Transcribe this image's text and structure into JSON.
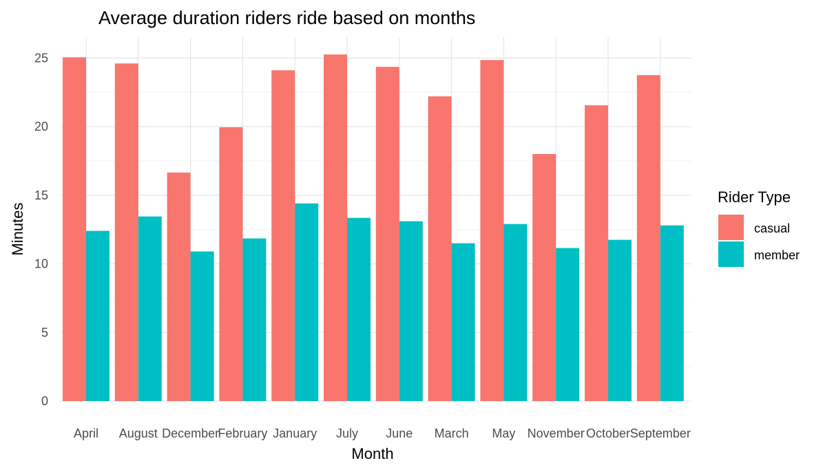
{
  "chart_data": {
    "type": "bar",
    "title": "Average duration riders ride based on months",
    "xlabel": "Month",
    "ylabel": "Minutes",
    "categories": [
      "April",
      "August",
      "December",
      "February",
      "January",
      "July",
      "June",
      "March",
      "May",
      "November",
      "October",
      "September"
    ],
    "series": [
      {
        "name": "casual",
        "color": "#F8766D",
        "values": [
          25.05,
          24.6,
          16.65,
          19.95,
          24.1,
          25.25,
          24.35,
          22.2,
          24.85,
          18.0,
          21.55,
          23.75
        ]
      },
      {
        "name": "member",
        "color": "#00BFC4",
        "values": [
          12.4,
          13.45,
          10.9,
          11.85,
          14.4,
          13.35,
          13.1,
          11.5,
          12.9,
          11.15,
          11.75,
          12.8
        ]
      }
    ],
    "ylim": [
      0,
      26.5
    ],
    "yticks": [
      0,
      5,
      10,
      15,
      20,
      25
    ],
    "grid": true,
    "legend": {
      "title": "Rider Type",
      "position": "right"
    }
  }
}
